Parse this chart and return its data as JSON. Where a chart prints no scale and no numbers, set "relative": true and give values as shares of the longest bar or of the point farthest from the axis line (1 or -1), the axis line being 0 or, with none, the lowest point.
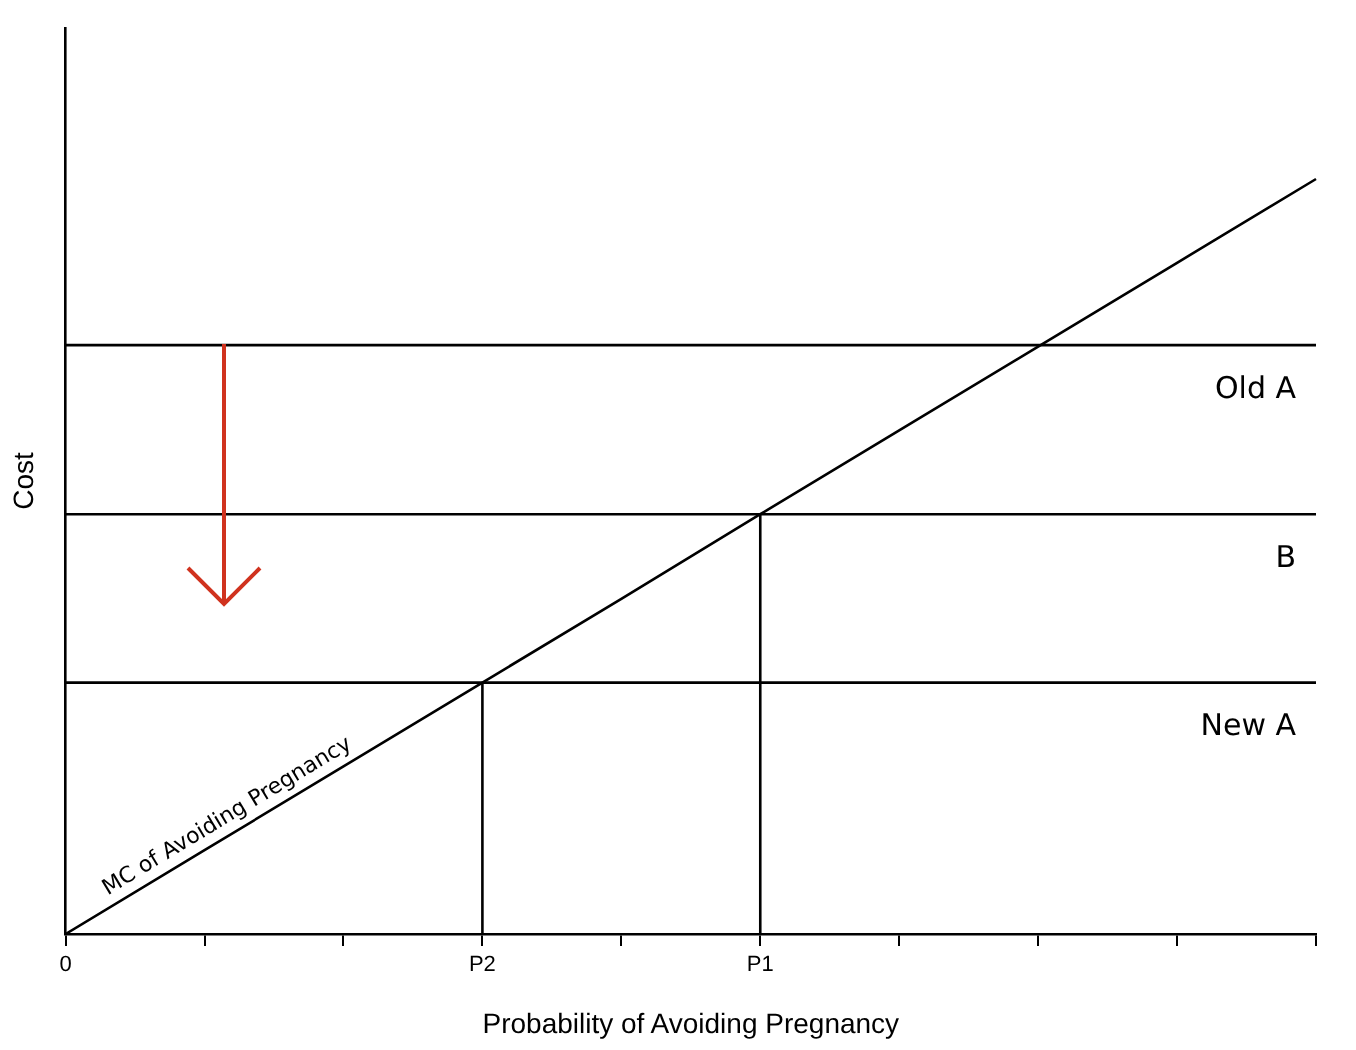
{
  "chart_data": {
    "type": "line",
    "relative": true,
    "xlabel": "Probability of Avoiding Pregnancy",
    "ylabel": "Cost",
    "categories": [
      "0",
      null,
      null,
      "P2",
      null,
      "P1",
      null,
      null,
      null,
      null
    ],
    "series": [
      {
        "name": "MC of Avoiding Pregnancy",
        "color": "#000000",
        "values": [
          0,
          0.111,
          0.222,
          0.333,
          0.444,
          0.556,
          0.667,
          0.778,
          0.889,
          1
        ]
      },
      {
        "name": "Old A",
        "color": "#000000",
        "values": [
          0.78,
          0.78,
          0.78,
          0.78,
          0.78,
          0.78,
          0.78,
          0.78,
          0.78,
          0.78
        ]
      },
      {
        "name": "B",
        "color": "#000000",
        "values": [
          0.556,
          0.556,
          0.556,
          0.556,
          0.556,
          0.556,
          0.556,
          0.556,
          0.556,
          0.556
        ]
      },
      {
        "name": "New A",
        "color": "#000000",
        "values": [
          0.333,
          0.333,
          0.333,
          0.333,
          0.333,
          0.333,
          0.333,
          0.333,
          0.333,
          0.333
        ]
      },
      {
        "color": "#000000",
        "x": [
          "P2",
          "P2"
        ],
        "values": [
          0,
          0.333
        ]
      },
      {
        "color": "#000000",
        "x": [
          "P1",
          "P1"
        ],
        "values": [
          0,
          0.556
        ]
      }
    ],
    "grid": false,
    "legend": false,
    "marker": "none",
    "line_style": "solid"
  }
}
